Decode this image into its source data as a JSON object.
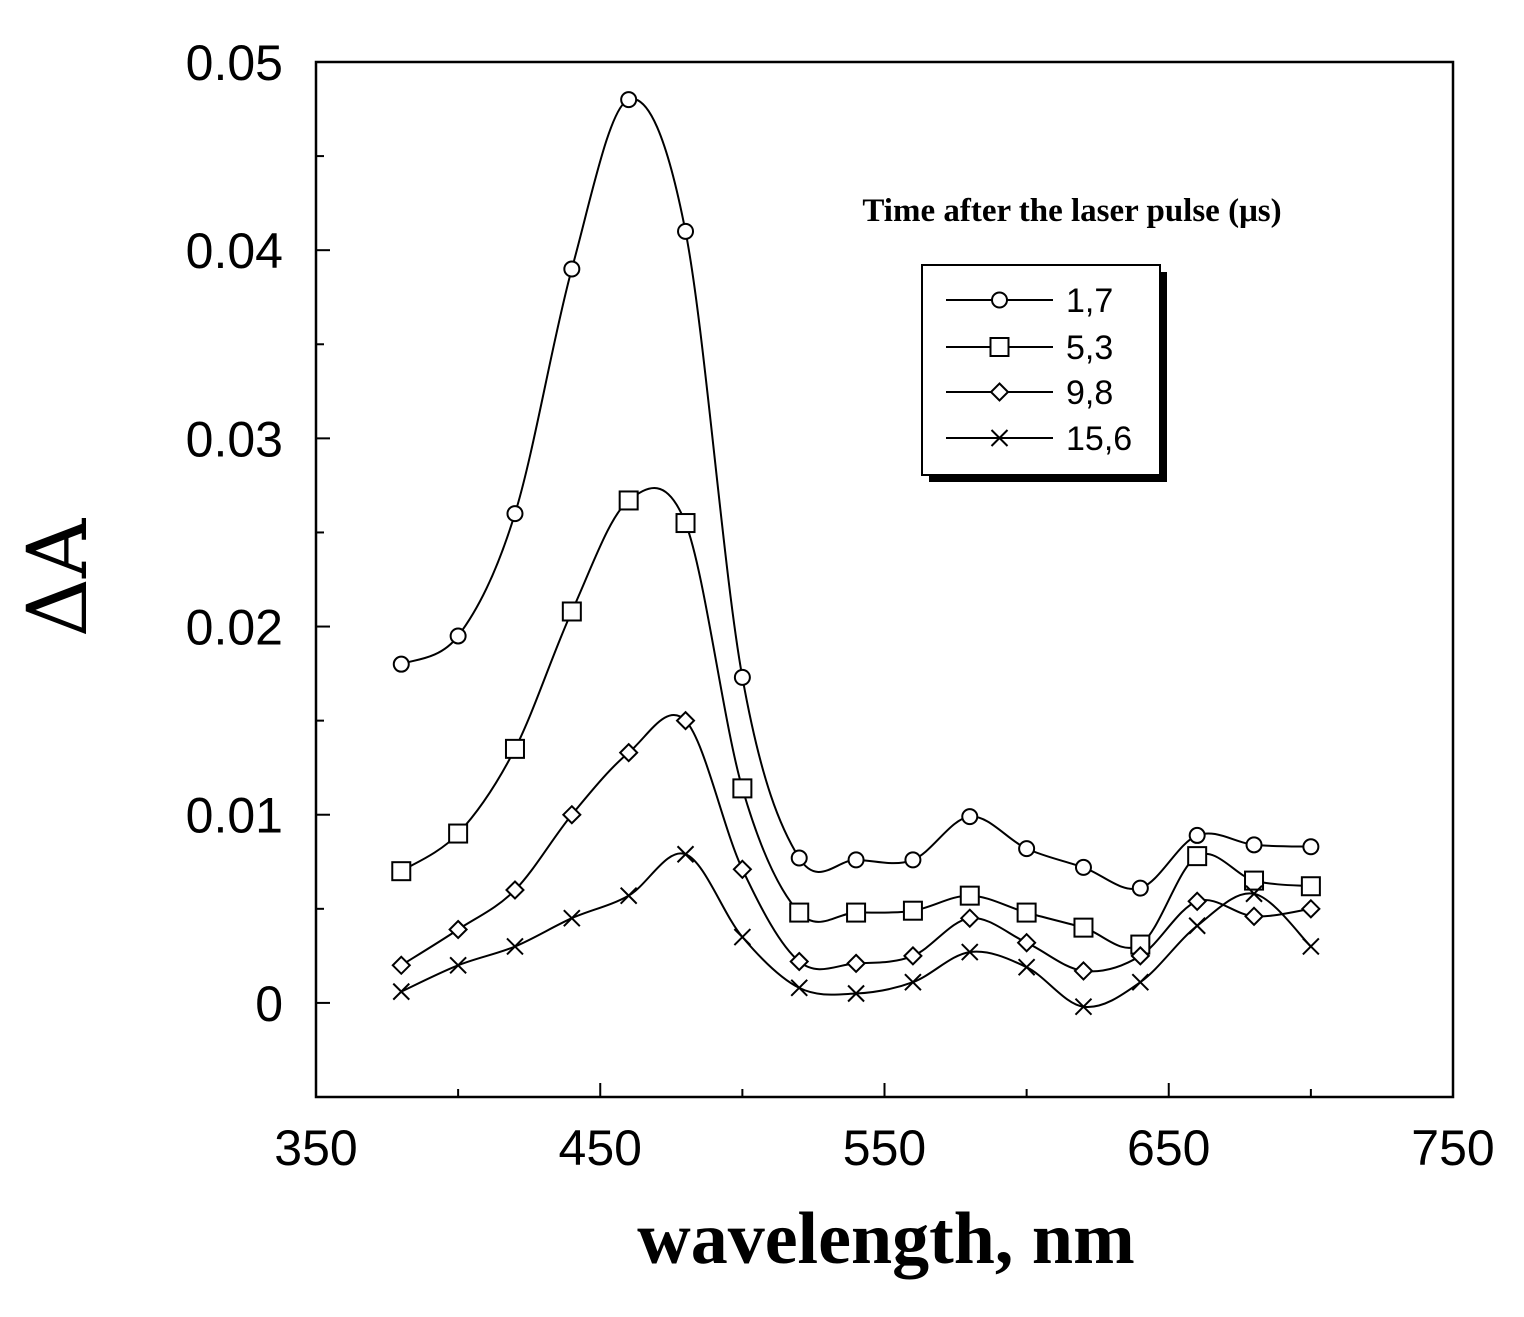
{
  "chart_data": {
    "type": "line",
    "title": "",
    "xlabel": "wavelength, nm",
    "ylabel": "ΔA",
    "xlim": [
      350,
      750
    ],
    "ylim": [
      -0.005,
      0.05
    ],
    "xticks": [
      350,
      450,
      550,
      650,
      750
    ],
    "xtick_labels": [
      "350",
      "450",
      "550",
      "650",
      "750"
    ],
    "yticks": [
      0,
      0.01,
      0.02,
      0.03,
      0.04,
      0.05
    ],
    "ytick_labels": [
      "0",
      "0.01",
      "0.02",
      "0.03",
      "0.04",
      "0.05"
    ],
    "grid": false,
    "legend_title": "Time after the laser pulse (μs)",
    "legend_position": "upper-right",
    "x": [
      380,
      400,
      420,
      440,
      460,
      480,
      500,
      520,
      540,
      560,
      580,
      600,
      620,
      640,
      660,
      680,
      700
    ],
    "series": [
      {
        "name": "1,7",
        "marker": "circle",
        "values": [
          0.018,
          0.0195,
          0.026,
          0.039,
          0.048,
          0.041,
          0.0173,
          0.0077,
          0.0076,
          0.0076,
          0.0099,
          0.0082,
          0.0072,
          0.0061,
          0.0089,
          0.0084,
          0.0083
        ]
      },
      {
        "name": "5,3",
        "marker": "square",
        "values": [
          0.007,
          0.009,
          0.0135,
          0.0208,
          0.0267,
          0.0255,
          0.0114,
          0.0048,
          0.0048,
          0.0049,
          0.0057,
          0.0048,
          0.004,
          0.0031,
          0.0078,
          0.0065,
          0.0062
        ]
      },
      {
        "name": "9,8",
        "marker": "diamond",
        "values": [
          0.002,
          0.0039,
          0.006,
          0.01,
          0.0133,
          0.015,
          0.0071,
          0.0022,
          0.0021,
          0.0025,
          0.0045,
          0.0032,
          0.0017,
          0.0025,
          0.0054,
          0.0046,
          0.005
        ]
      },
      {
        "name": "15,6",
        "marker": "cross",
        "values": [
          0.0006,
          0.002,
          0.003,
          0.0045,
          0.0057,
          0.0079,
          0.0035,
          0.0008,
          0.0005,
          0.0011,
          0.0027,
          0.0019,
          -0.0002,
          0.0011,
          0.0041,
          0.0058,
          0.003
        ]
      }
    ]
  }
}
